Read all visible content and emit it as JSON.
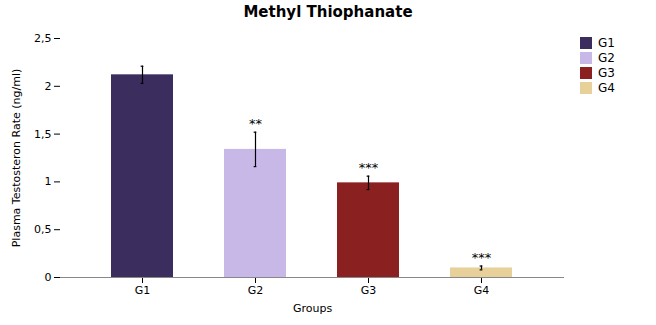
{
  "chart_data": {
    "type": "bar",
    "title": "Methyl Thiophanate",
    "xlabel": "Groups",
    "ylabel": "Plasma Testosteron Rate (ng/ml)",
    "categories": [
      "G1",
      "G2",
      "G3",
      "G4"
    ],
    "values": [
      2.12,
      1.34,
      0.99,
      0.1
    ],
    "errors": [
      0.09,
      0.18,
      0.07,
      0.02
    ],
    "annotations": [
      null,
      "**",
      "***",
      "***"
    ],
    "colors": [
      "#3b2d5e",
      "#c8b8e8",
      "#8b2020",
      "#e8d09a"
    ],
    "ylim": [
      0,
      2.5
    ],
    "yticks": [
      0,
      {
        "value": 0.5,
        "label": "0,5"
      },
      1,
      {
        "value": 1.5,
        "label": "1,5"
      },
      2,
      {
        "value": 2.5,
        "label": "2,5"
      }
    ],
    "grid": false,
    "legend": "upper right"
  }
}
